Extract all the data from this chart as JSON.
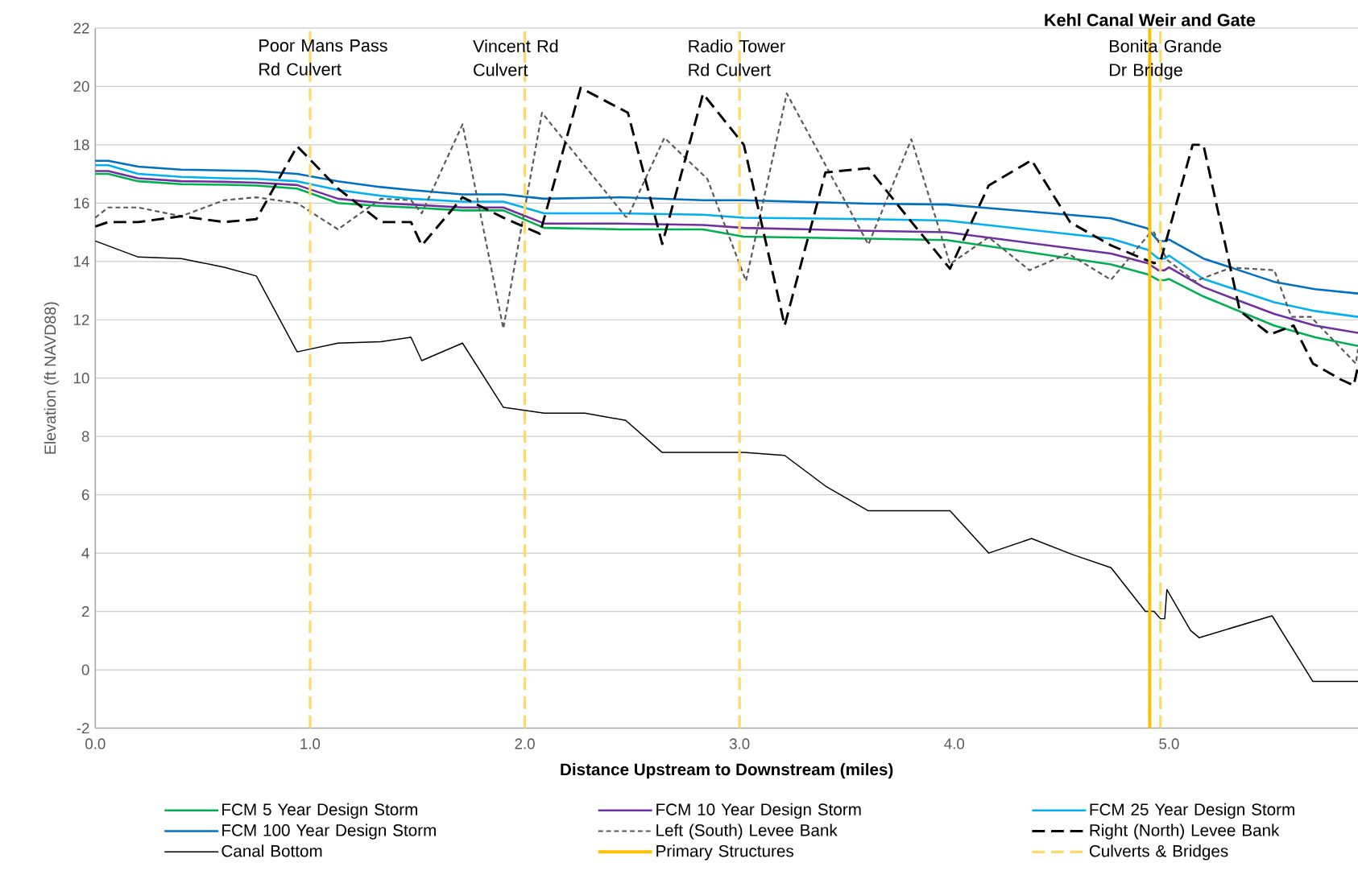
{
  "chart_data": {
    "type": "line",
    "xlabel": "Distance Upstream to Downstream (miles)",
    "ylabel": "Elevation (ft NAVD88)",
    "xlim": [
      0,
      5.88
    ],
    "ylim": [
      -2,
      22
    ],
    "xticks": [
      {
        "value": 0,
        "label": "0.0"
      },
      {
        "value": 1,
        "label": "1.0"
      },
      {
        "value": 2,
        "label": "2.0"
      },
      {
        "value": 3,
        "label": "3.0"
      },
      {
        "value": 4,
        "label": "4.0"
      },
      {
        "value": 5,
        "label": "5.0"
      }
    ],
    "yticks": [
      -2,
      0,
      2,
      4,
      6,
      8,
      10,
      12,
      14,
      16,
      18,
      20,
      22
    ],
    "grid": "y",
    "legend": "bottom",
    "marker": "none",
    "series": [
      {
        "name": "FCM 5 Year Design Storm",
        "color": "#00b050",
        "line_style": "solid",
        "x": [
          0,
          0.06,
          0.2,
          0.4,
          0.6,
          0.75,
          0.94,
          1.13,
          1.33,
          1.47,
          1.71,
          1.9,
          2.09,
          2.44,
          2.83,
          3.02,
          3.6,
          3.965,
          4.73,
          4.9,
          4.95,
          4.98,
          5.0,
          5.16,
          5.49,
          5.68,
          5.88
        ],
        "values": [
          17.0,
          17.0,
          16.75,
          16.65,
          16.63,
          16.6,
          16.5,
          16.0,
          15.9,
          15.85,
          15.75,
          15.75,
          15.15,
          15.1,
          15.1,
          14.85,
          14.78,
          14.73,
          13.9,
          13.56,
          13.36,
          13.36,
          13.4,
          12.8,
          11.8,
          11.4,
          11.1
        ]
      },
      {
        "name": "FCM 10 Year Design Storm",
        "color": "#7030a0",
        "line_style": "solid",
        "x": [
          0,
          0.06,
          0.2,
          0.4,
          0.6,
          0.75,
          0.94,
          1.13,
          1.33,
          1.47,
          1.71,
          1.9,
          2.09,
          2.44,
          2.83,
          3.02,
          3.6,
          3.965,
          4.73,
          4.9,
          4.95,
          4.98,
          5.0,
          5.16,
          5.49,
          5.68,
          5.88
        ],
        "values": [
          17.1,
          17.1,
          16.85,
          16.75,
          16.73,
          16.7,
          16.62,
          16.15,
          16.0,
          15.95,
          15.85,
          15.85,
          15.3,
          15.3,
          15.25,
          15.15,
          15.05,
          15.0,
          14.27,
          13.94,
          13.7,
          13.7,
          13.8,
          13.12,
          12.2,
          11.8,
          11.55
        ]
      },
      {
        "name": "FCM 25 Year Design Storm",
        "color": "#00b0f0",
        "line_style": "solid",
        "x": [
          0,
          0.06,
          0.2,
          0.4,
          0.6,
          0.75,
          0.94,
          1.13,
          1.33,
          1.47,
          1.71,
          1.9,
          2.09,
          2.44,
          2.83,
          3.02,
          3.6,
          3.965,
          4.73,
          4.9,
          4.95,
          4.98,
          5.0,
          5.16,
          5.49,
          5.68,
          5.88
        ],
        "values": [
          17.3,
          17.3,
          17.0,
          16.9,
          16.85,
          16.83,
          16.75,
          16.45,
          16.25,
          16.15,
          16.05,
          16.05,
          15.65,
          15.65,
          15.6,
          15.5,
          15.45,
          15.4,
          14.78,
          14.4,
          14.1,
          14.1,
          14.2,
          13.4,
          12.6,
          12.3,
          12.1
        ]
      },
      {
        "name": "FCM 100 Year Design Storm",
        "color": "#0070c0",
        "line_style": "solid",
        "x": [
          0,
          0.06,
          0.2,
          0.4,
          0.6,
          0.75,
          0.94,
          1.13,
          1.33,
          1.47,
          1.71,
          1.9,
          2.09,
          2.44,
          2.83,
          3.02,
          3.6,
          3.965,
          4.73,
          4.9,
          4.95,
          4.98,
          5.0,
          5.16,
          5.49,
          5.68,
          5.88
        ],
        "values": [
          17.45,
          17.45,
          17.25,
          17.15,
          17.12,
          17.1,
          17.0,
          16.75,
          16.55,
          16.45,
          16.3,
          16.3,
          16.15,
          16.2,
          16.1,
          16.1,
          15.98,
          15.95,
          15.48,
          15.13,
          14.7,
          14.7,
          14.75,
          14.1,
          13.3,
          13.05,
          12.9
        ]
      },
      {
        "name": "Left (South) Levee Bank",
        "color": "#595959",
        "line_style": "dotted",
        "x": [
          0,
          0.06,
          0.2,
          0.4,
          0.6,
          0.75,
          0.94,
          1.13,
          1.33,
          1.47,
          1.52,
          1.71,
          1.9,
          2.08,
          2.47,
          2.48,
          2.65,
          2.85,
          3.03,
          3.22,
          3.6,
          3.8,
          3.98,
          4.16,
          4.35,
          4.53,
          4.73,
          4.91,
          4.93,
          4.99,
          5.12,
          5.29,
          5.49,
          5.57,
          5.66,
          5.87,
          5.88
        ],
        "values": [
          15.5,
          15.85,
          15.85,
          15.55,
          16.1,
          16.2,
          16.0,
          15.1,
          16.15,
          16.1,
          15.65,
          18.7,
          11.7,
          19.1,
          15.53,
          15.53,
          18.24,
          16.83,
          13.33,
          19.76,
          14.58,
          18.19,
          13.91,
          14.83,
          13.7,
          14.27,
          13.37,
          14.96,
          15.0,
          14.06,
          13.32,
          13.79,
          13.7,
          12.1,
          12.1,
          10.5,
          11.0
        ]
      },
      {
        "name": "Right (North) Levee Bank",
        "color": "#000000",
        "line_style": "dashed",
        "x": [
          0,
          0.06,
          0.2,
          0.4,
          0.6,
          0.75,
          0.94,
          1.13,
          1.33,
          1.47,
          1.52,
          1.71,
          1.9,
          2.07,
          2.26,
          2.48,
          2.64,
          2.83,
          3.02,
          3.21,
          3.4,
          3.6,
          3.79,
          3.98,
          4.16,
          4.36,
          4.54,
          4.73,
          4.93,
          4.96,
          5.11,
          5.16,
          5.33,
          5.47,
          5.58,
          5.67,
          5.8,
          5.86,
          5.88
        ],
        "values": [
          15.2,
          15.35,
          15.35,
          15.55,
          15.35,
          15.45,
          17.95,
          16.5,
          15.35,
          15.35,
          14.55,
          16.2,
          15.5,
          14.95,
          19.95,
          19.1,
          14.6,
          19.75,
          18.0,
          11.8,
          17.05,
          17.2,
          15.45,
          13.75,
          16.6,
          17.47,
          15.34,
          14.55,
          13.94,
          14.0,
          18.0,
          18.0,
          12.3,
          11.5,
          11.8,
          10.5,
          9.95,
          9.75,
          10.4
        ]
      },
      {
        "name": "Canal Bottom",
        "color": "#000000",
        "line_style": "solid",
        "x": [
          0,
          0.2,
          0.4,
          0.6,
          0.75,
          0.94,
          1.13,
          1.33,
          1.47,
          1.52,
          1.71,
          1.9,
          2.09,
          2.28,
          2.47,
          2.64,
          2.83,
          3.02,
          3.21,
          3.4,
          3.6,
          3.79,
          3.98,
          4.16,
          4.36,
          4.55,
          4.73,
          4.89,
          4.93,
          4.96,
          4.98,
          4.99,
          5.1,
          5.14,
          5.48,
          5.67,
          5.88
        ],
        "values": [
          14.7,
          14.15,
          14.1,
          13.8,
          13.5,
          10.9,
          11.2,
          11.25,
          11.4,
          10.6,
          11.2,
          9.0,
          8.8,
          8.8,
          8.55,
          7.45,
          7.45,
          7.45,
          7.35,
          6.3,
          5.45,
          5.45,
          5.45,
          4.0,
          4.5,
          3.95,
          3.5,
          2.0,
          2.0,
          1.75,
          1.75,
          2.75,
          1.35,
          1.1,
          1.85,
          -0.4,
          -0.4
        ]
      }
    ],
    "ref_lines": [
      {
        "axis": "x",
        "value": 4.91,
        "label": "Kehl Canal Weir and Gate",
        "color": "#ffc000",
        "line_style": "solid"
      },
      {
        "axis": "x",
        "value": 1.0,
        "label": "Poor Mans Pass Rd Culvert",
        "color": "#ffd966",
        "line_style": "dashed"
      },
      {
        "axis": "x",
        "value": 2.0,
        "label": "Vincent Rd Culvert",
        "color": "#ffd966",
        "line_style": "dashed"
      },
      {
        "axis": "x",
        "value": 3.0,
        "label": "Radio Tower Rd Culvert",
        "color": "#ffd966",
        "line_style": "dashed"
      },
      {
        "axis": "x",
        "value": 4.96,
        "label": "Bonita Grande Dr Bridge",
        "color": "#ffd966",
        "line_style": "dashed"
      }
    ],
    "annotations": [
      "Primary Structures",
      "Culverts & Bridges"
    ]
  }
}
